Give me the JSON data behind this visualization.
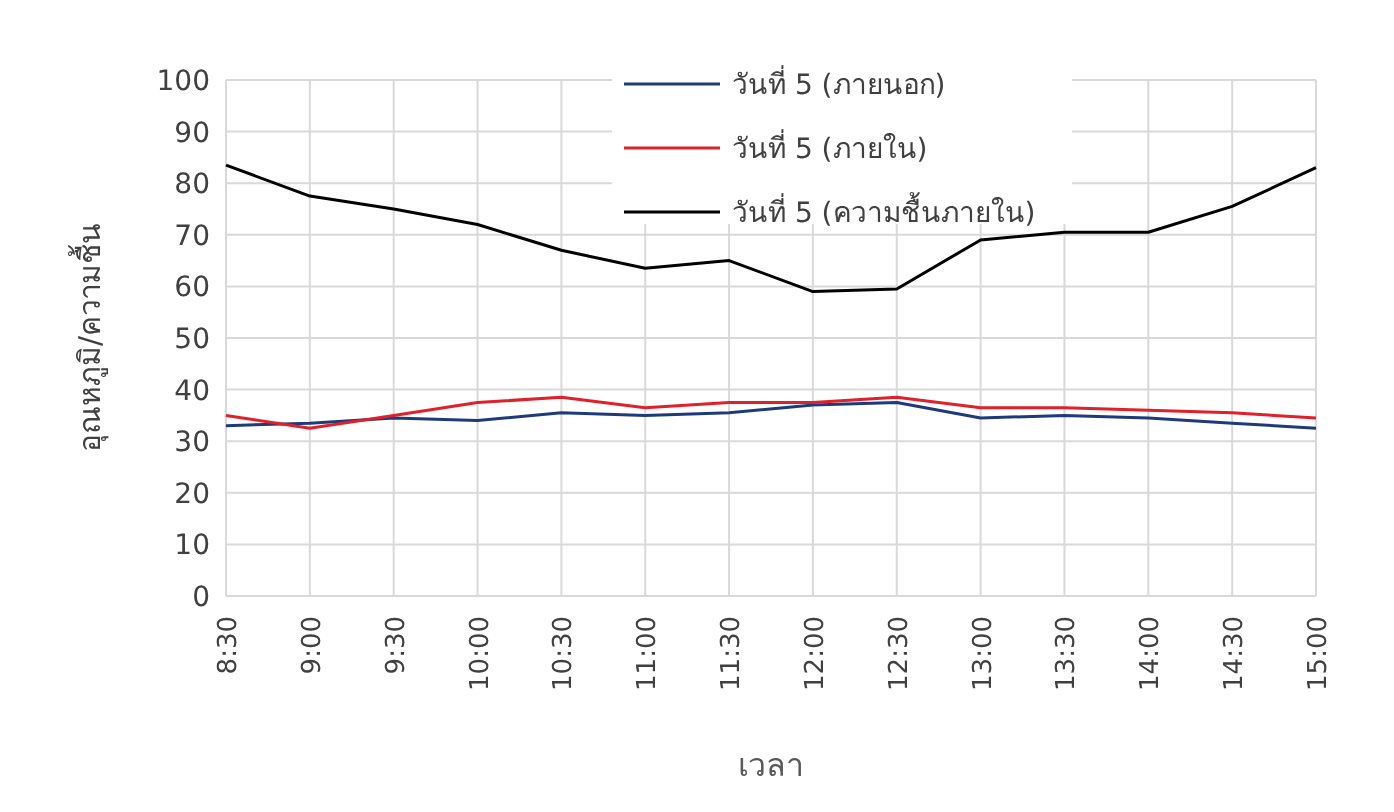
{
  "chart_data": {
    "type": "line",
    "xlabel": "เวลา",
    "ylabel": "อุณหภูมิ/ความชื้น",
    "categories": [
      "8:30",
      "9:00",
      "9:30",
      "10:00",
      "10:30",
      "11:00",
      "11:30",
      "12:00",
      "12:30",
      "13:00",
      "13:30",
      "14:00",
      "14:30",
      "15:00"
    ],
    "series": [
      {
        "name": "วันที่ 5 (ภายนอก)",
        "color": "#1f3a7a",
        "values": [
          33,
          33.5,
          34.5,
          34,
          35.5,
          35,
          35.5,
          37,
          37.5,
          34.5,
          35,
          34.5,
          33.5,
          32.5
        ]
      },
      {
        "name": "วันที่ 5 (ภายใน)",
        "color": "#e0202a",
        "values": [
          35,
          32.5,
          35,
          37.5,
          38.5,
          36.5,
          37.5,
          37.5,
          38.5,
          36.5,
          36.5,
          36,
          35.5,
          34.5
        ]
      },
      {
        "name": "วันที่ 5 (ความชื้นภายใน)",
        "color": "#000000",
        "values": [
          83.5,
          77.5,
          75,
          72,
          67,
          63.5,
          65,
          59,
          59.5,
          69,
          70.5,
          70.5,
          75.5,
          83
        ]
      }
    ],
    "ylim": [
      0,
      100
    ],
    "yticks": [
      0,
      10,
      20,
      30,
      40,
      50,
      60,
      70,
      80,
      90,
      100
    ],
    "grid": true,
    "legend": "top",
    "marker": "none",
    "line_style": "solid"
  }
}
